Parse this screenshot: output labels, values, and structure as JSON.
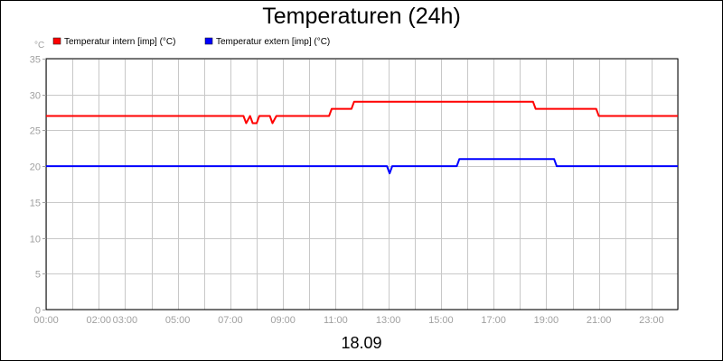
{
  "chart_data": {
    "type": "line",
    "title": "Temperaturen (24h)",
    "footer_label": "18.09",
    "y_unit_label": "°C",
    "ylim": [
      0,
      35
    ],
    "y_ticks": [
      "0",
      "5",
      "10",
      "15",
      "20",
      "25",
      "30",
      "35"
    ],
    "xlim": [
      0,
      24
    ],
    "x_ticks": [
      {
        "hour": 0,
        "label": "00:00"
      },
      {
        "hour": 2,
        "label": "02:00"
      },
      {
        "hour": 3,
        "label": "03:00"
      },
      {
        "hour": 5,
        "label": "05:00"
      },
      {
        "hour": 7,
        "label": "07:00"
      },
      {
        "hour": 9,
        "label": "09:00"
      },
      {
        "hour": 11,
        "label": "11:00"
      },
      {
        "hour": 13,
        "label": "13:00"
      },
      {
        "hour": 15,
        "label": "15:00"
      },
      {
        "hour": 17,
        "label": "17:00"
      },
      {
        "hour": 19,
        "label": "19:00"
      },
      {
        "hour": 21,
        "label": "21:00"
      },
      {
        "hour": 23,
        "label": "23:00"
      }
    ],
    "grid": true,
    "legend_position": "top-left",
    "series": [
      {
        "name": "Temperatur intern [imp] (°C)",
        "color": "#ff0000",
        "points": [
          [
            0,
            27
          ],
          [
            7.5,
            27
          ],
          [
            7.6,
            26
          ],
          [
            7.75,
            27
          ],
          [
            7.85,
            26
          ],
          [
            8.0,
            26
          ],
          [
            8.1,
            27
          ],
          [
            8.5,
            27
          ],
          [
            8.6,
            26
          ],
          [
            8.75,
            27
          ],
          [
            10.75,
            27
          ],
          [
            10.85,
            28
          ],
          [
            11.6,
            28
          ],
          [
            11.7,
            29
          ],
          [
            18.5,
            29
          ],
          [
            18.6,
            28
          ],
          [
            20.9,
            28
          ],
          [
            21.0,
            27
          ],
          [
            24,
            27
          ]
        ]
      },
      {
        "name": "Temperatur extern [imp] (°C)",
        "color": "#0000ff",
        "points": [
          [
            0,
            20
          ],
          [
            12.95,
            20
          ],
          [
            13.05,
            19
          ],
          [
            13.15,
            20
          ],
          [
            15.6,
            20
          ],
          [
            15.7,
            21
          ],
          [
            19.3,
            21
          ],
          [
            19.4,
            20
          ],
          [
            24,
            20
          ]
        ]
      }
    ]
  }
}
